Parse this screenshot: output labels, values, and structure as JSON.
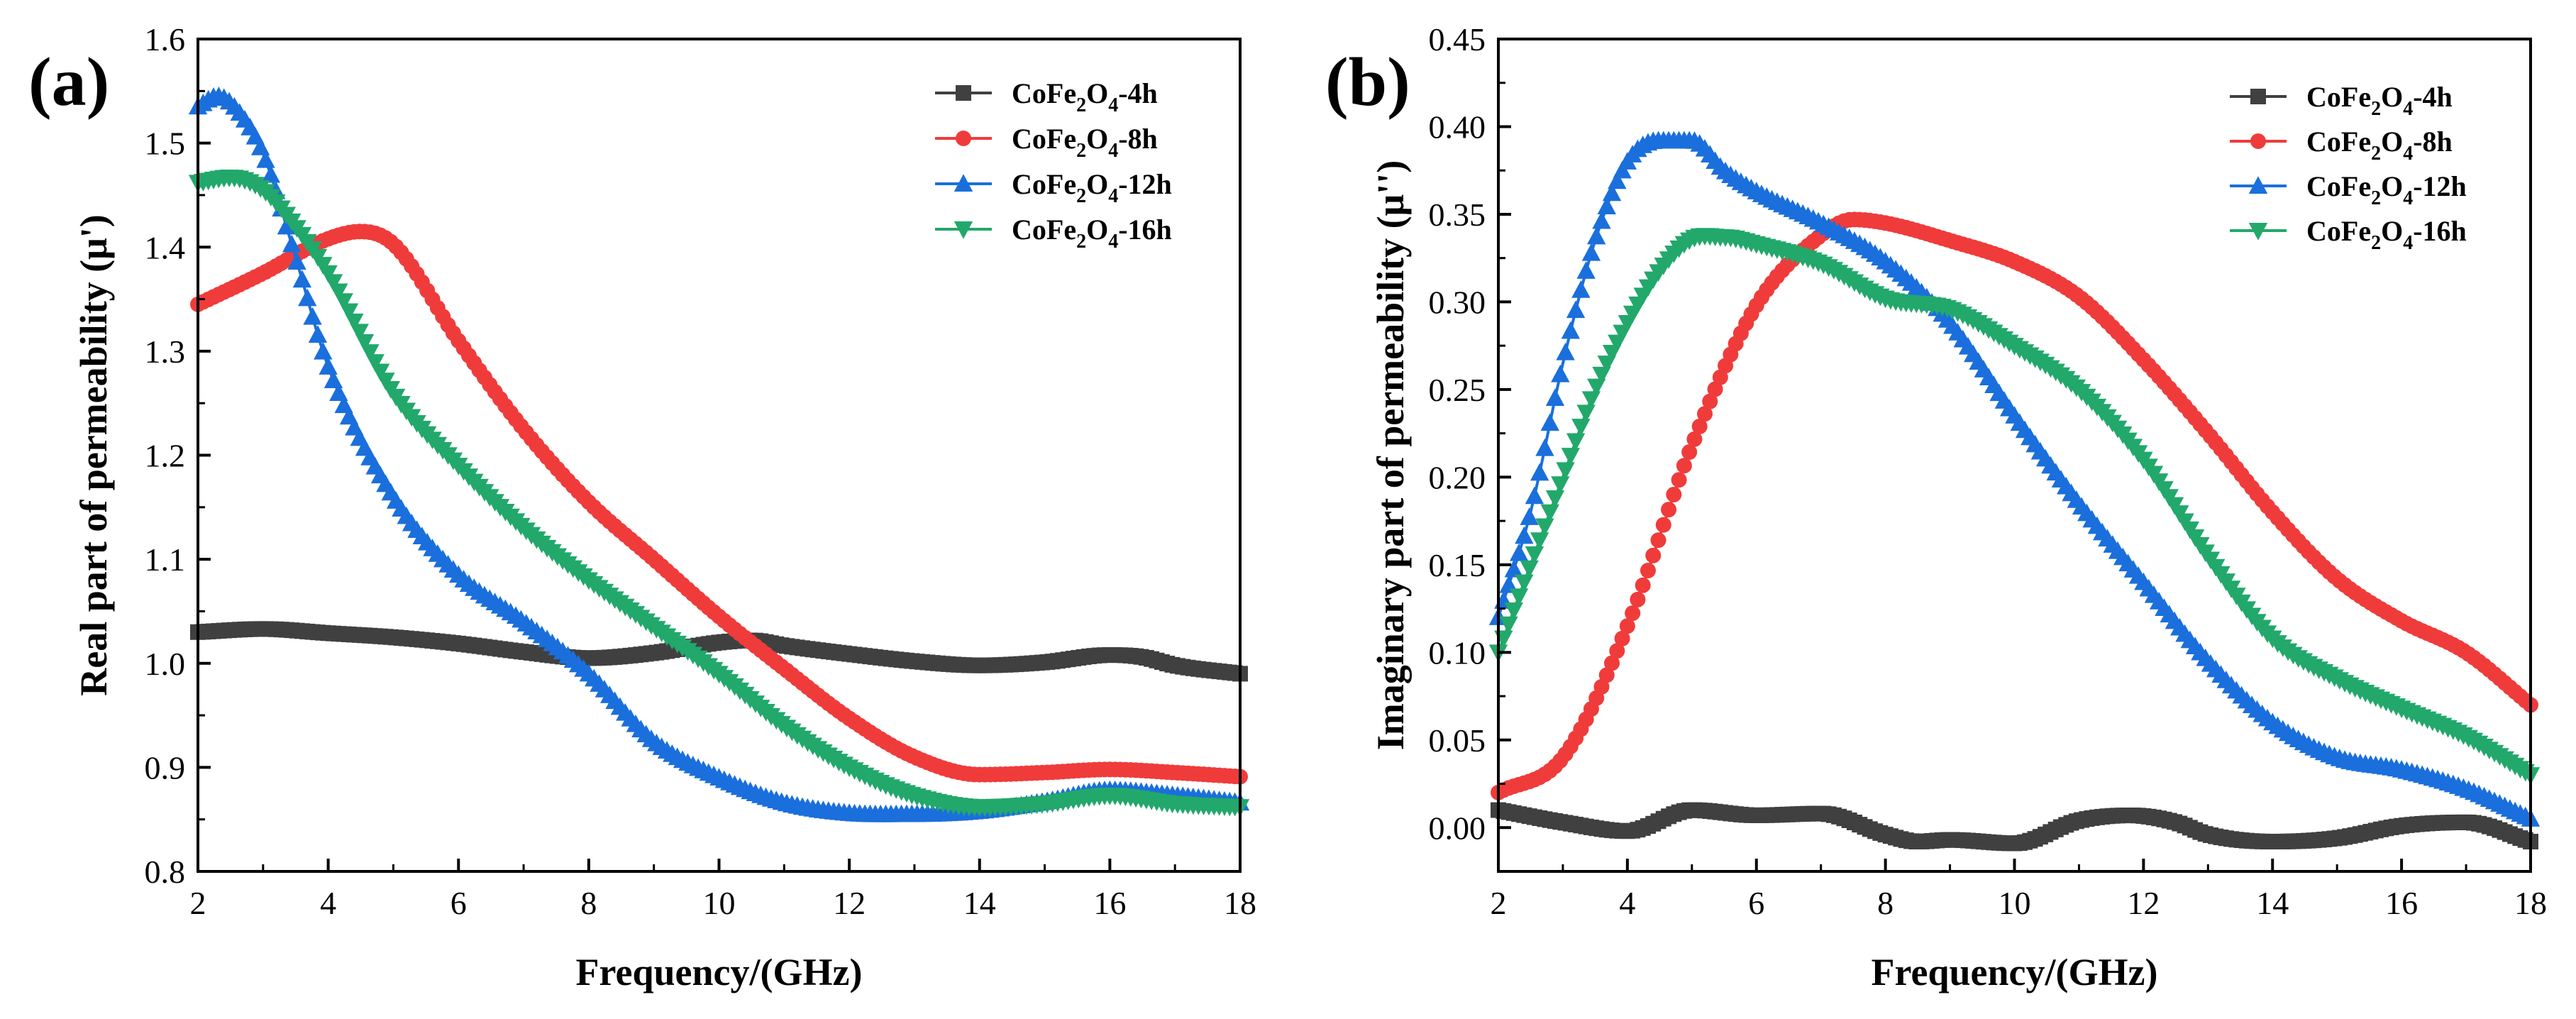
{
  "chart_data": [
    {
      "panel_label": "(a)",
      "type": "line",
      "xlabel": "Frequency/(GHz)",
      "ylabel": "Real part of permeability (μ')",
      "xlim": [
        2,
        18
      ],
      "ylim": [
        0.8,
        1.6
      ],
      "xticks": [
        "2",
        "4",
        "6",
        "8",
        "10",
        "12",
        "14",
        "16",
        "18"
      ],
      "yticks": [
        "0.8",
        "0.9",
        "1.0",
        "1.1",
        "1.2",
        "1.3",
        "1.4",
        "1.5",
        "1.6"
      ],
      "legend_position": "top-right",
      "series": [
        {
          "name": "CoFe2O4-4h",
          "legend": {
            "base": "CoFe",
            "sub1": "2",
            "mid": "O",
            "sub2": "4",
            "suffix": "-4h"
          },
          "color": "#404040",
          "marker": "square",
          "x": [
            2,
            3,
            4,
            5,
            6,
            7,
            8,
            9,
            10,
            10.5,
            11,
            12,
            13,
            14,
            15,
            16,
            16.5,
            17,
            18
          ],
          "y": [
            1.03,
            1.033,
            1.029,
            1.025,
            1.019,
            1.011,
            1.005,
            1.01,
            1.02,
            1.022,
            1.017,
            1.009,
            1.002,
            0.998,
            1.001,
            1.008,
            1.006,
            0.998,
            0.99
          ]
        },
        {
          "name": "CoFe2O4-8h",
          "legend": {
            "base": "CoFe",
            "sub1": "2",
            "mid": "O",
            "sub2": "4",
            "suffix": "-8h"
          },
          "color": "#f03b3b",
          "marker": "circle",
          "x": [
            2,
            3,
            4,
            4.5,
            5,
            6,
            7,
            8,
            9,
            10,
            11,
            12,
            13,
            14,
            15,
            16,
            17,
            18
          ],
          "y": [
            1.345,
            1.375,
            1.408,
            1.415,
            1.403,
            1.31,
            1.225,
            1.155,
            1.1,
            1.045,
            0.995,
            0.947,
            0.91,
            0.893,
            0.895,
            0.898,
            0.895,
            0.891
          ]
        },
        {
          "name": "CoFe2O4-12h",
          "legend": {
            "base": "CoFe",
            "sub1": "2",
            "mid": "O",
            "sub2": "4",
            "suffix": "-12h"
          },
          "color": "#1a6fdc",
          "marker": "triangle-up",
          "x": [
            2,
            2.3,
            2.6,
            3,
            3.5,
            4,
            5,
            6,
            7,
            8,
            9,
            10,
            11,
            12,
            13,
            14,
            15,
            16,
            17,
            18
          ],
          "y": [
            1.535,
            1.545,
            1.532,
            1.49,
            1.39,
            1.285,
            1.16,
            1.085,
            1.04,
            0.99,
            0.925,
            0.89,
            0.866,
            0.856,
            0.855,
            0.858,
            0.867,
            0.878,
            0.873,
            0.866
          ]
        },
        {
          "name": "CoFe2O4-16h",
          "legend": {
            "base": "CoFe",
            "sub1": "2",
            "mid": "O",
            "sub2": "4",
            "suffix": "-16h"
          },
          "color": "#22a86b",
          "marker": "triangle-down",
          "x": [
            2,
            2.5,
            3,
            3.5,
            4,
            5,
            6,
            7,
            8,
            9,
            10,
            11,
            12,
            13,
            14,
            15,
            16,
            17,
            18
          ],
          "y": [
            1.462,
            1.467,
            1.455,
            1.42,
            1.375,
            1.26,
            1.19,
            1.13,
            1.08,
            1.035,
            0.99,
            0.94,
            0.9,
            0.873,
            0.862,
            0.865,
            0.873,
            0.865,
            0.862
          ]
        }
      ]
    },
    {
      "panel_label": "(b)",
      "type": "line",
      "xlabel": "Frequency/(GHz)",
      "ylabel": "Imaginary part of permeability (μ'')",
      "xlim": [
        2,
        18
      ],
      "ylim": [
        -0.025,
        0.45
      ],
      "xticks": [
        "2",
        "4",
        "6",
        "8",
        "10",
        "12",
        "14",
        "16",
        "18"
      ],
      "yticks": [
        "0.00",
        "0.05",
        "0.10",
        "0.15",
        "0.20",
        "0.25",
        "0.30",
        "0.35",
        "0.40",
        "0.45"
      ],
      "legend_position": "top-right",
      "series": [
        {
          "name": "CoFe2O4-4h",
          "legend": {
            "base": "CoFe",
            "sub1": "2",
            "mid": "O",
            "sub2": "4",
            "suffix": "-4h"
          },
          "color": "#404040",
          "marker": "square",
          "x": [
            2,
            3,
            4,
            5,
            6,
            7,
            8,
            8.5,
            9,
            10,
            11,
            11.8,
            12.5,
            13,
            14,
            15,
            16,
            17,
            18
          ],
          "y": [
            0.01,
            0.003,
            -0.002,
            0.01,
            0.007,
            0.008,
            -0.004,
            -0.008,
            -0.007,
            -0.009,
            0.004,
            0.007,
            0.003,
            -0.004,
            -0.008,
            -0.006,
            0.001,
            0.003,
            -0.008
          ]
        },
        {
          "name": "CoFe2O4-8h",
          "legend": {
            "base": "CoFe",
            "sub1": "2",
            "mid": "O",
            "sub2": "4",
            "suffix": "-8h"
          },
          "color": "#f03b3b",
          "marker": "circle",
          "x": [
            2,
            3,
            4,
            5,
            6,
            7,
            7.5,
            8,
            9,
            10,
            11,
            12,
            13,
            14,
            15,
            16,
            17,
            18
          ],
          "y": [
            0.02,
            0.04,
            0.115,
            0.218,
            0.298,
            0.338,
            0.347,
            0.345,
            0.335,
            0.323,
            0.303,
            0.267,
            0.225,
            0.18,
            0.142,
            0.118,
            0.1,
            0.07
          ]
        },
        {
          "name": "CoFe2O4-12h",
          "legend": {
            "base": "CoFe",
            "sub1": "2",
            "mid": "O",
            "sub2": "4",
            "suffix": "-12h"
          },
          "color": "#1a6fdc",
          "marker": "triangle-up",
          "x": [
            2,
            2.5,
            3,
            3.5,
            4,
            4.5,
            5,
            5.5,
            6,
            7,
            8,
            9,
            10,
            11,
            12,
            13,
            14,
            15,
            16,
            17,
            18
          ],
          "y": [
            0.12,
            0.18,
            0.265,
            0.335,
            0.38,
            0.392,
            0.392,
            0.375,
            0.363,
            0.345,
            0.323,
            0.288,
            0.235,
            0.185,
            0.14,
            0.095,
            0.06,
            0.04,
            0.033,
            0.022,
            0.005
          ]
        },
        {
          "name": "CoFe2O4-16h",
          "legend": {
            "base": "CoFe",
            "sub1": "2",
            "mid": "O",
            "sub2": "4",
            "suffix": "-16h"
          },
          "color": "#22a86b",
          "marker": "triangle-down",
          "x": [
            2,
            2.5,
            3,
            3.5,
            4,
            4.5,
            5,
            5.5,
            6,
            7,
            8,
            9,
            10,
            11,
            12,
            13,
            14,
            15,
            16,
            17,
            18
          ],
          "y": [
            0.1,
            0.15,
            0.2,
            0.25,
            0.288,
            0.318,
            0.336,
            0.337,
            0.333,
            0.322,
            0.302,
            0.296,
            0.275,
            0.25,
            0.21,
            0.155,
            0.108,
            0.085,
            0.068,
            0.052,
            0.03
          ]
        }
      ]
    }
  ]
}
